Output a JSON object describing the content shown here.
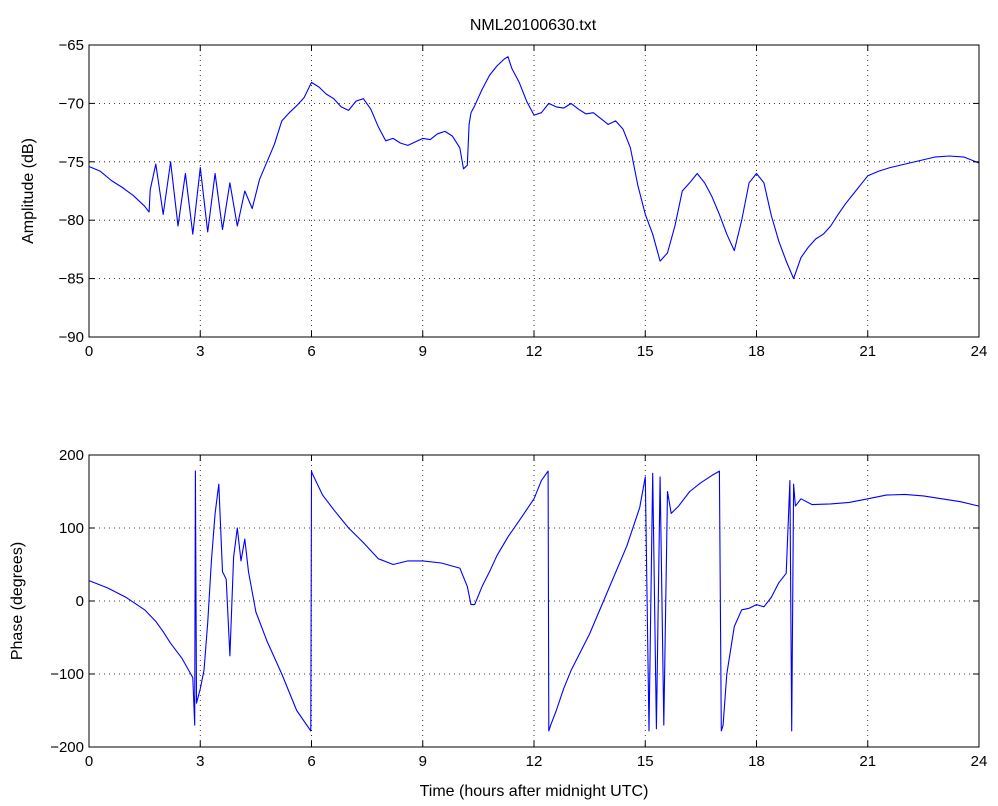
{
  "figure": {
    "title": "NML20100630.txt"
  },
  "chart_data": [
    {
      "type": "line",
      "title": "NML20100630.txt",
      "xlabel": "",
      "ylabel": "Amplitude (dB)",
      "xlim": [
        0,
        24
      ],
      "ylim": [
        -90,
        -65
      ],
      "xticks": [
        0,
        3,
        6,
        9,
        12,
        15,
        18,
        21,
        24
      ],
      "yticks": [
        -90,
        -85,
        -80,
        -75,
        -70,
        -65
      ],
      "xtick_labels": [
        "0",
        "3",
        "6",
        "9",
        "12",
        "15",
        "18",
        "21",
        "24"
      ],
      "ytick_labels": [
        "−90",
        "−85",
        "−80",
        "−75",
        "−70",
        "−65"
      ],
      "grid": true,
      "color": "#0000ff",
      "series": [
        {
          "x": [
            0,
            0.3,
            0.6,
            0.9,
            1.2,
            1.5,
            1.62,
            1.65,
            1.8,
            2.0,
            2.2,
            2.4,
            2.6,
            2.8,
            3.0,
            3.2,
            3.4,
            3.6,
            3.8,
            4.0,
            4.2,
            4.4,
            4.6,
            4.8,
            5.0,
            5.2,
            5.4,
            5.6,
            5.8,
            6.0,
            6.2,
            6.4,
            6.6,
            6.8,
            7.0,
            7.2,
            7.4,
            7.6,
            7.8,
            8.0,
            8.2,
            8.4,
            8.6,
            8.8,
            9.0,
            9.2,
            9.4,
            9.6,
            9.8,
            10.0,
            10.1,
            10.2,
            10.25,
            10.3,
            10.4,
            10.6,
            10.8,
            11.0,
            11.2,
            11.3,
            11.4,
            11.6,
            11.8,
            12.0,
            12.2,
            12.4,
            12.6,
            12.8,
            13.0,
            13.2,
            13.4,
            13.6,
            13.8,
            14.0,
            14.2,
            14.4,
            14.6,
            14.8,
            15.0,
            15.2,
            15.4,
            15.6,
            15.8,
            16.0,
            16.2,
            16.4,
            16.6,
            16.8,
            17.0,
            17.2,
            17.4,
            17.6,
            17.8,
            18.0,
            18.2,
            18.4,
            18.6,
            18.8,
            19.0,
            19.2,
            19.4,
            19.6,
            19.8,
            20.0,
            20.2,
            20.4,
            20.6,
            20.8,
            21.0,
            21.3,
            21.6,
            22.0,
            22.4,
            22.8,
            23.2,
            23.6,
            24.0
          ],
          "y": [
            -75.4,
            -75.8,
            -76.6,
            -77.2,
            -77.9,
            -78.8,
            -79.3,
            -77.4,
            -75.2,
            -79.5,
            -75.0,
            -80.5,
            -76.0,
            -81.2,
            -75.5,
            -81.0,
            -76.0,
            -80.8,
            -76.8,
            -80.5,
            -77.5,
            -79.0,
            -76.5,
            -75.0,
            -73.5,
            -71.5,
            -70.8,
            -70.2,
            -69.5,
            -68.2,
            -68.6,
            -69.2,
            -69.6,
            -70.3,
            -70.6,
            -69.8,
            -69.6,
            -70.5,
            -72.0,
            -73.2,
            -73.0,
            -73.4,
            -73.6,
            -73.3,
            -73.0,
            -73.1,
            -72.6,
            -72.4,
            -72.8,
            -73.8,
            -75.6,
            -75.3,
            -71.8,
            -70.8,
            -70.2,
            -68.8,
            -67.6,
            -66.8,
            -66.2,
            -66.0,
            -67.0,
            -68.2,
            -69.8,
            -71.0,
            -70.8,
            -70.0,
            -70.3,
            -70.4,
            -70.0,
            -70.5,
            -70.9,
            -70.8,
            -71.3,
            -71.8,
            -71.5,
            -72.2,
            -73.8,
            -77.0,
            -79.5,
            -81.2,
            -83.5,
            -82.8,
            -80.5,
            -77.5,
            -76.8,
            -76.0,
            -76.8,
            -78.0,
            -79.5,
            -81.2,
            -82.6,
            -80.0,
            -76.8,
            -76.0,
            -76.8,
            -79.6,
            -81.8,
            -83.5,
            -85.0,
            -83.2,
            -82.3,
            -81.6,
            -81.2,
            -80.5,
            -79.5,
            -78.6,
            -77.8,
            -77.0,
            -76.2,
            -75.8,
            -75.5,
            -75.2,
            -74.9,
            -74.6,
            -74.5,
            -74.6,
            -75.1
          ]
        }
      ]
    },
    {
      "type": "line",
      "title": "",
      "xlabel": "Time (hours after midnight UTC)",
      "ylabel": "Phase (degrees)",
      "xlim": [
        0,
        24
      ],
      "ylim": [
        -200,
        200
      ],
      "xticks": [
        0,
        3,
        6,
        9,
        12,
        15,
        18,
        21,
        24
      ],
      "yticks": [
        -200,
        -100,
        0,
        100,
        200
      ],
      "xtick_labels": [
        "0",
        "3",
        "6",
        "9",
        "12",
        "15",
        "18",
        "21",
        "24"
      ],
      "ytick_labels": [
        "−200",
        "−100",
        "0",
        "100",
        "200"
      ],
      "grid": true,
      "color": "#0000ff",
      "series": [
        {
          "x": [
            0,
            0.5,
            1.0,
            1.5,
            1.8,
            2.0,
            2.2,
            2.5,
            2.8,
            2.85,
            2.87,
            2.9,
            3.0,
            3.1,
            3.2,
            3.3,
            3.4,
            3.5,
            3.6,
            3.7,
            3.8,
            3.9,
            4.0,
            4.1,
            4.2,
            4.3,
            4.5,
            4.8,
            5.2,
            5.6,
            5.98,
            6.0,
            6.02,
            6.3,
            6.6,
            7.0,
            7.4,
            7.8,
            8.2,
            8.6,
            9.0,
            9.5,
            10.0,
            10.2,
            10.3,
            10.4,
            10.6,
            10.8,
            11.0,
            11.3,
            11.6,
            12.0,
            12.2,
            12.38,
            12.4,
            12.45,
            12.6,
            12.8,
            13.0,
            13.5,
            14.0,
            14.5,
            14.85,
            15.0,
            15.1,
            15.2,
            15.3,
            15.4,
            15.5,
            15.6,
            15.7,
            15.9,
            16.2,
            16.5,
            16.8,
            17.0,
            17.05,
            17.1,
            17.2,
            17.4,
            17.6,
            17.8,
            18.0,
            18.2,
            18.4,
            18.6,
            18.8,
            18.9,
            18.95,
            19.0,
            19.05,
            19.2,
            19.5,
            20.0,
            20.5,
            21.0,
            21.5,
            22.0,
            22.5,
            23.0,
            23.5,
            24.0
          ],
          "y": [
            28,
            18,
            5,
            -12,
            -28,
            -42,
            -58,
            -78,
            -105,
            -170,
            178,
            -140,
            -120,
            -95,
            -30,
            55,
            120,
            160,
            40,
            30,
            -75,
            60,
            100,
            55,
            85,
            40,
            -15,
            -55,
            -100,
            -150,
            -178,
            178,
            175,
            145,
            125,
            100,
            80,
            58,
            50,
            55,
            55,
            52,
            45,
            20,
            -5,
            -5,
            20,
            40,
            62,
            88,
            110,
            140,
            165,
            178,
            -178,
            -170,
            -150,
            -120,
            -95,
            -45,
            15,
            75,
            128,
            170,
            -178,
            175,
            -175,
            170,
            -170,
            150,
            120,
            130,
            150,
            162,
            172,
            178,
            -178,
            -170,
            -100,
            -35,
            -12,
            -10,
            -5,
            -8,
            5,
            25,
            38,
            165,
            -178,
            160,
            130,
            140,
            132,
            133,
            135,
            140,
            145,
            146,
            144,
            140,
            136,
            130
          ]
        }
      ]
    }
  ]
}
